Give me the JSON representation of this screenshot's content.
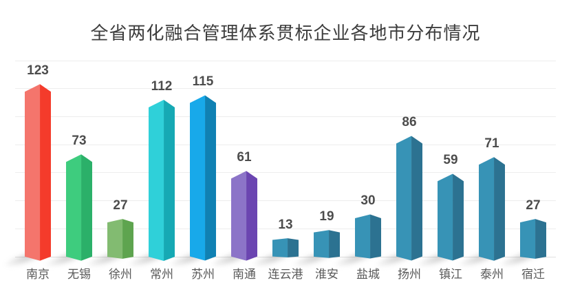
{
  "chart_data": {
    "type": "bar",
    "style": "3d-hexagon-bars",
    "title": "全省两化融合管理体系贯标企业各地市分布情况",
    "xlabel": "",
    "ylabel": "",
    "categories": [
      "南京",
      "无锡",
      "徐州",
      "常州",
      "苏州",
      "南通",
      "连云港",
      "淮安",
      "盐城",
      "扬州",
      "镇江",
      "泰州",
      "宿迁"
    ],
    "values": [
      123,
      73,
      27,
      112,
      115,
      61,
      13,
      19,
      30,
      86,
      59,
      71,
      27
    ],
    "value_labels_shown": true,
    "ylim": [
      0,
      140
    ],
    "grid_step": 20,
    "grid": "horizontal-only, no y tick labels, no y axis line",
    "legend_position": "none",
    "bar_face_colors": [
      {
        "light": "#F4756C",
        "dark": "#F43B2B"
      },
      {
        "light": "#3ECC7E",
        "dark": "#2BB069"
      },
      {
        "light": "#82BB71",
        "dark": "#5EA44F"
      },
      {
        "light": "#2FD0D9",
        "dark": "#16A9B4"
      },
      {
        "light": "#18A9EA",
        "dark": "#1081B3"
      },
      {
        "light": "#8C74C8",
        "dark": "#6B45B1"
      },
      {
        "light": "#3793B6",
        "dark": "#2C7291"
      },
      {
        "light": "#3793B6",
        "dark": "#2C7291"
      },
      {
        "light": "#3793B6",
        "dark": "#2C7291"
      },
      {
        "light": "#3793B6",
        "dark": "#2C7291"
      },
      {
        "light": "#3793B6",
        "dark": "#2C7291"
      },
      {
        "light": "#3793B6",
        "dark": "#2C7291"
      },
      {
        "light": "#3793B6",
        "dark": "#2C7291"
      }
    ],
    "colors": {
      "title_text": "#3d3d3d",
      "value_label_text": "#4c4c4c",
      "axis_label_text": "#595959",
      "gridline": "#ededed",
      "baseline": "#e0e0e0",
      "background": "#ffffff"
    }
  }
}
